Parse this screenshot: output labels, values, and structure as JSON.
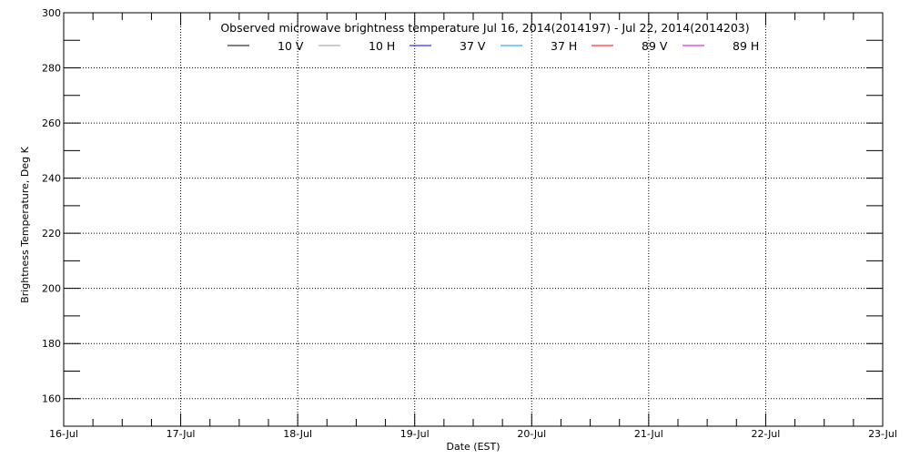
{
  "chart_data": {
    "type": "line",
    "title": "Observed microwave brightness temperature Jul 16, 2014(2014197) - Jul 22, 2014(2014203)",
    "xlabel": "Date (EST)",
    "ylabel": "Brightness Temperature, Deg K",
    "x_ticks": [
      "16-Jul",
      "17-Jul",
      "18-Jul",
      "19-Jul",
      "20-Jul",
      "21-Jul",
      "22-Jul",
      "23-Jul"
    ],
    "y_ticks": [
      160,
      180,
      200,
      220,
      240,
      260,
      280,
      300
    ],
    "ylim": [
      150,
      300
    ],
    "grid": true,
    "legend_position": "top-center",
    "series": [
      {
        "name": "10 V",
        "color": "#000000",
        "values": []
      },
      {
        "name": "10 H",
        "color": "#999999",
        "values": []
      },
      {
        "name": "37 V",
        "color": "#0000ff",
        "values": []
      },
      {
        "name": "37 H",
        "color": "#0099ff",
        "values": []
      },
      {
        "name": "89 V",
        "color": "#ff0000",
        "values": []
      },
      {
        "name": "89 H",
        "color": "#cc00cc",
        "values": []
      }
    ]
  }
}
